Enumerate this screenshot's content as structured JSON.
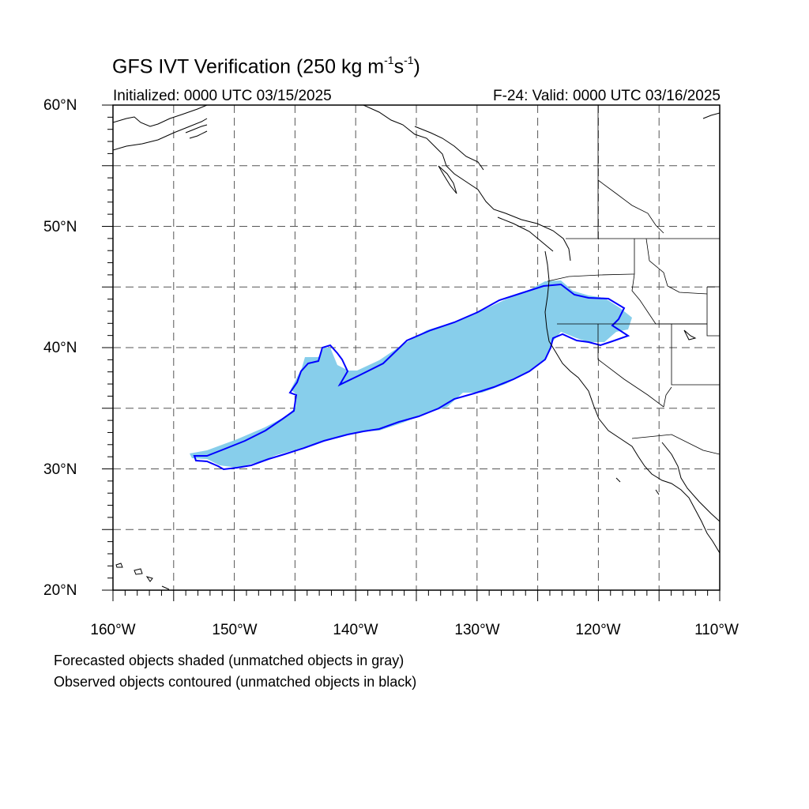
{
  "header": {
    "title_prefix": "GFS IVT Verification (250 kg m",
    "title_exp1": "-1",
    "title_mid": "s",
    "title_exp2": "-1",
    "title_suffix": ")",
    "initialized": "Initialized: 0000 UTC 03/15/2025",
    "valid": "F-24: Valid: 0000 UTC 03/16/2025"
  },
  "axes": {
    "lat_labels": [
      "60°N",
      "50°N",
      "40°N",
      "30°N",
      "20°N"
    ],
    "lon_labels": [
      "160°W",
      "150°W",
      "140°W",
      "130°W",
      "120°W",
      "110°W"
    ],
    "lon_range": [
      -160,
      -110
    ],
    "lat_range": [
      20,
      60
    ],
    "grid": "dashed, every 5 degrees"
  },
  "legend": {
    "line1": "Forecasted objects shaded (unmatched objects in gray)",
    "line2": "Observed objects contoured (unmatched objects in black)"
  },
  "colors": {
    "forecast_fill": "#87ceeb",
    "observed_contour": "#0000ff",
    "coastline": "#000000",
    "grid": "#555555"
  }
}
